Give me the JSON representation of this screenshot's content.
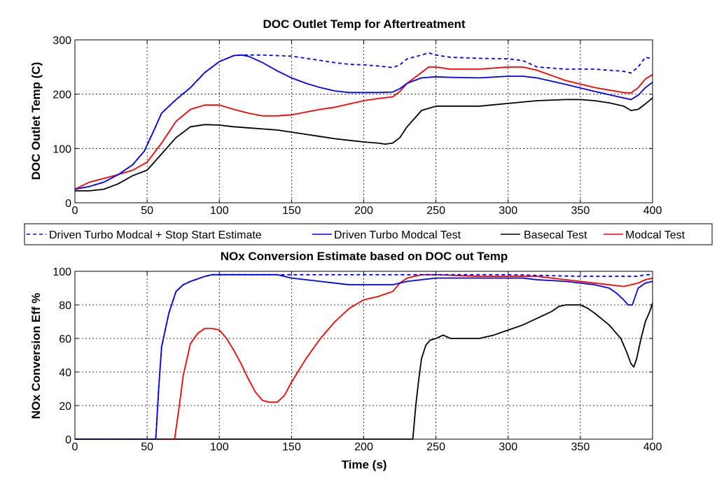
{
  "chart_data": [
    {
      "type": "line",
      "title": "DOC Outlet Temp for Aftertreatment",
      "xlabel": "",
      "ylabel": "DOC Outlet Temp (C)",
      "xlim": [
        0,
        400
      ],
      "ylim": [
        0,
        300
      ],
      "xticks": [
        "0",
        "50",
        "100",
        "150",
        "200",
        "250",
        "300",
        "350",
        "400"
      ],
      "yticks": [
        "0",
        "100",
        "200",
        "300"
      ],
      "grid": true,
      "series": [
        {
          "name": "Driven Turbo Modcal + Stop Start Estimate",
          "color": "#0000ff",
          "dash": "dashed",
          "x": [
            0,
            10,
            20,
            30,
            40,
            48,
            55,
            60,
            70,
            80,
            90,
            100,
            110,
            115,
            120,
            130,
            140,
            150,
            160,
            170,
            180,
            190,
            200,
            210,
            220,
            225,
            230,
            240,
            245,
            250,
            260,
            280,
            300,
            310,
            320,
            340,
            360,
            380,
            385,
            390,
            395,
            400
          ],
          "y": [
            25,
            30,
            38,
            52,
            70,
            95,
            135,
            165,
            190,
            212,
            240,
            260,
            271,
            272,
            272,
            272,
            271,
            270,
            266,
            262,
            258,
            255,
            254,
            252,
            249,
            254,
            265,
            272,
            276,
            272,
            268,
            266,
            265,
            262,
            250,
            246,
            246,
            242,
            239,
            250,
            268,
            265
          ]
        },
        {
          "name": "Driven Turbo Modcal Test",
          "color": "#0000ff",
          "dash": "solid",
          "x": [
            0,
            10,
            20,
            30,
            40,
            48,
            55,
            60,
            70,
            80,
            90,
            100,
            110,
            115,
            120,
            130,
            140,
            150,
            160,
            170,
            180,
            190,
            200,
            210,
            220,
            225,
            230,
            240,
            250,
            260,
            280,
            300,
            310,
            320,
            340,
            360,
            380,
            385,
            390,
            395,
            400
          ],
          "y": [
            25,
            30,
            38,
            52,
            70,
            95,
            135,
            165,
            190,
            212,
            240,
            260,
            271,
            272,
            270,
            258,
            243,
            230,
            220,
            212,
            206,
            203,
            203,
            203,
            204,
            210,
            220,
            230,
            232,
            231,
            230,
            233,
            233,
            230,
            218,
            205,
            193,
            190,
            198,
            212,
            222
          ]
        },
        {
          "name": "Basecal Test",
          "color": "#000000",
          "dash": "solid",
          "x": [
            0,
            10,
            20,
            30,
            40,
            50,
            60,
            70,
            80,
            90,
            100,
            110,
            120,
            130,
            140,
            150,
            160,
            170,
            180,
            190,
            200,
            210,
            215,
            220,
            225,
            230,
            240,
            250,
            260,
            280,
            300,
            320,
            340,
            350,
            360,
            370,
            380,
            385,
            390,
            395,
            400
          ],
          "y": [
            22,
            22,
            25,
            35,
            50,
            60,
            90,
            120,
            140,
            144,
            143,
            140,
            138,
            136,
            134,
            130,
            126,
            122,
            118,
            115,
            112,
            110,
            108,
            110,
            120,
            140,
            170,
            178,
            178,
            178,
            183,
            188,
            190,
            190,
            188,
            184,
            178,
            170,
            172,
            182,
            193
          ]
        },
        {
          "name": "Modcal Test",
          "color": "#ff0000",
          "dash": "solid",
          "x": [
            0,
            10,
            20,
            30,
            40,
            50,
            60,
            70,
            80,
            90,
            100,
            110,
            120,
            130,
            140,
            150,
            160,
            170,
            180,
            190,
            200,
            210,
            220,
            225,
            230,
            240,
            245,
            250,
            260,
            280,
            300,
            310,
            320,
            340,
            360,
            380,
            385,
            390,
            395,
            400
          ],
          "y": [
            25,
            38,
            45,
            52,
            60,
            75,
            110,
            150,
            172,
            180,
            180,
            172,
            165,
            160,
            160,
            162,
            167,
            172,
            176,
            182,
            188,
            192,
            195,
            205,
            220,
            240,
            250,
            250,
            246,
            246,
            250,
            250,
            244,
            225,
            212,
            203,
            202,
            212,
            228,
            236
          ]
        }
      ]
    },
    {
      "type": "line",
      "title": "NOx Conversion Estimate based on DOC out Temp",
      "xlabel": "Time (s)",
      "ylabel": "NOx Conversion Eff %",
      "xlim": [
        0,
        400
      ],
      "ylim": [
        0,
        100
      ],
      "xticks": [
        "0",
        "50",
        "100",
        "150",
        "200",
        "250",
        "300",
        "350",
        "400"
      ],
      "yticks": [
        "0",
        "20",
        "40",
        "60",
        "80",
        "100"
      ],
      "grid": true,
      "series": [
        {
          "name": "Driven Turbo Modcal + Stop Start Estimate",
          "color": "#0000ff",
          "dash": "dashed",
          "x": [
            0,
            56,
            58,
            60,
            65,
            70,
            75,
            80,
            90,
            95,
            100,
            110,
            120,
            130,
            140,
            150,
            160,
            170,
            180,
            190,
            200,
            220,
            240,
            250,
            300,
            350,
            380,
            385,
            390,
            395,
            400
          ],
          "y": [
            0,
            0,
            30,
            55,
            75,
            88,
            92,
            94,
            97,
            98,
            98,
            98,
            98,
            98,
            98,
            98,
            98,
            98,
            98,
            98,
            98,
            98,
            98,
            98,
            98,
            97,
            97,
            97,
            97,
            98,
            98
          ]
        },
        {
          "name": "Driven Turbo Modcal Test",
          "color": "#0000ff",
          "dash": "solid",
          "x": [
            0,
            56,
            58,
            60,
            65,
            70,
            75,
            80,
            90,
            95,
            100,
            110,
            120,
            130,
            140,
            150,
            160,
            170,
            180,
            190,
            200,
            210,
            220,
            225,
            230,
            240,
            250,
            260,
            280,
            300,
            310,
            320,
            340,
            360,
            370,
            375,
            380,
            383,
            386,
            390,
            395,
            400
          ],
          "y": [
            0,
            0,
            30,
            55,
            75,
            88,
            92,
            94,
            97,
            98,
            98,
            98,
            98,
            98,
            98,
            96,
            95,
            94,
            93,
            92,
            92,
            92,
            92,
            93,
            94,
            95,
            96,
            96,
            96,
            96,
            96,
            95,
            94,
            92,
            90,
            87,
            83,
            80,
            80,
            90,
            93,
            94
          ]
        },
        {
          "name": "Basecal Test",
          "color": "#000000",
          "dash": "solid",
          "x": [
            0,
            234,
            236,
            238,
            240,
            243,
            246,
            250,
            255,
            260,
            265,
            270,
            280,
            290,
            300,
            310,
            320,
            330,
            335,
            340,
            345,
            350,
            355,
            360,
            370,
            378,
            382,
            385,
            387,
            389,
            392,
            395,
            398,
            400
          ],
          "y": [
            0,
            0,
            20,
            35,
            48,
            56,
            59,
            60,
            62,
            60,
            60,
            60,
            60,
            62,
            65,
            68,
            72,
            76,
            79,
            80,
            80,
            80,
            78,
            75,
            68,
            60,
            52,
            45,
            43,
            48,
            60,
            70,
            76,
            81
          ]
        },
        {
          "name": "Modcal Test",
          "color": "#ff0000",
          "dash": "solid",
          "x": [
            0,
            69,
            72,
            75,
            80,
            85,
            90,
            95,
            100,
            105,
            110,
            115,
            120,
            125,
            130,
            135,
            140,
            145,
            150,
            160,
            170,
            180,
            190,
            200,
            210,
            220,
            225,
            230,
            240,
            250,
            280,
            300,
            320,
            340,
            360,
            370,
            380,
            385,
            390,
            395,
            400
          ],
          "y": [
            0,
            0,
            18,
            38,
            57,
            63,
            66,
            66,
            65,
            60,
            53,
            45,
            36,
            28,
            23,
            22,
            22,
            26,
            34,
            48,
            60,
            70,
            78,
            83,
            85,
            88,
            93,
            96,
            98,
            98,
            97,
            97,
            97,
            95,
            93,
            92,
            91,
            92,
            93,
            95,
            96
          ]
        }
      ]
    }
  ],
  "legend": {
    "placement": "between-plots",
    "items": [
      {
        "label": "Driven Turbo Modcal + Stop Start Estimate",
        "color": "#0000ff",
        "dash": "dashed"
      },
      {
        "label": "Driven Turbo Modcal Test",
        "color": "#0000ff",
        "dash": "solid"
      },
      {
        "label": "Basecal Test",
        "color": "#000000",
        "dash": "solid"
      },
      {
        "label": "Modcal Test",
        "color": "#ff0000",
        "dash": "solid"
      }
    ]
  }
}
